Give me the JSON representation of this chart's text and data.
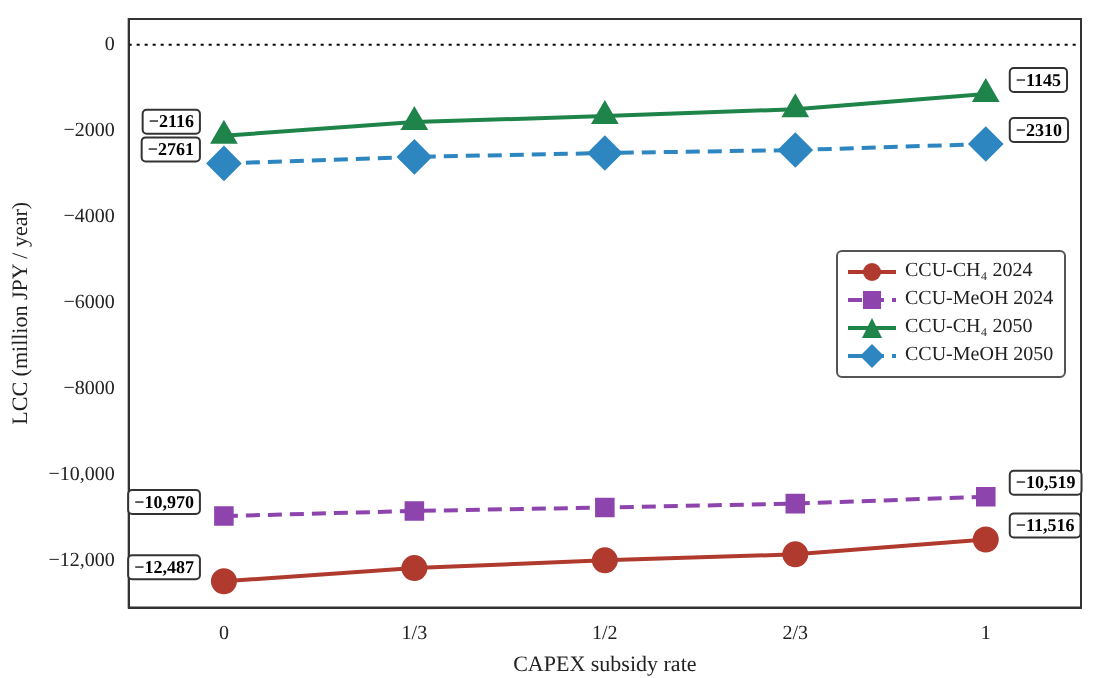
{
  "chart_data": {
    "type": "line",
    "xlabel": "CAPEX subsidy rate",
    "ylabel": "LCC (million JPY / year)",
    "categories": [
      "0",
      "1/3",
      "1/2",
      "2/3",
      "1"
    ],
    "ylim": [
      -13100,
      600
    ],
    "yticks": [
      {
        "value": -12000,
        "label": "−12,000"
      },
      {
        "value": -10000,
        "label": "−10,000"
      },
      {
        "value": -8000,
        "label": "−8000"
      },
      {
        "value": -6000,
        "label": "−6000"
      },
      {
        "value": -4000,
        "label": "−4000"
      },
      {
        "value": -2000,
        "label": "−2000"
      },
      0
    ],
    "series": [
      {
        "name": "CCU-CH₄ 2024",
        "color": "#b03a2e",
        "marker": "circle",
        "line_style": "solid",
        "values": [
          -12487,
          -12180,
          -12000,
          -11860,
          -11516
        ],
        "value_labels": [
          "−12,487",
          null,
          null,
          null,
          "−11,516"
        ]
      },
      {
        "name": "CCU-MeOH 2024",
        "color": "#8e44ad",
        "marker": "square",
        "line_style": "dashed",
        "values": [
          -10970,
          -10850,
          -10770,
          -10680,
          -10519
        ],
        "value_labels": [
          "−10,970",
          null,
          null,
          null,
          "−10,519"
        ]
      },
      {
        "name": "CCU-CH₄ 2050",
        "color": "#1e8449",
        "marker": "triangle",
        "line_style": "solid",
        "values": [
          -2116,
          -1800,
          -1660,
          -1500,
          -1145
        ],
        "value_labels": [
          "−2116",
          null,
          null,
          null,
          "−1145"
        ]
      },
      {
        "name": "CCU-MeOH 2050",
        "color": "#2e86c1",
        "marker": "diamond",
        "line_style": "dashed",
        "values": [
          -2761,
          -2610,
          -2520,
          -2450,
          -2310
        ],
        "value_labels": [
          "−2761",
          null,
          null,
          null,
          "−2310"
        ]
      }
    ],
    "ref_lines": [
      {
        "axis": "y",
        "value": 0,
        "color": "#000000",
        "line_style": "dotted"
      }
    ],
    "grid": false,
    "legend": "center right"
  }
}
